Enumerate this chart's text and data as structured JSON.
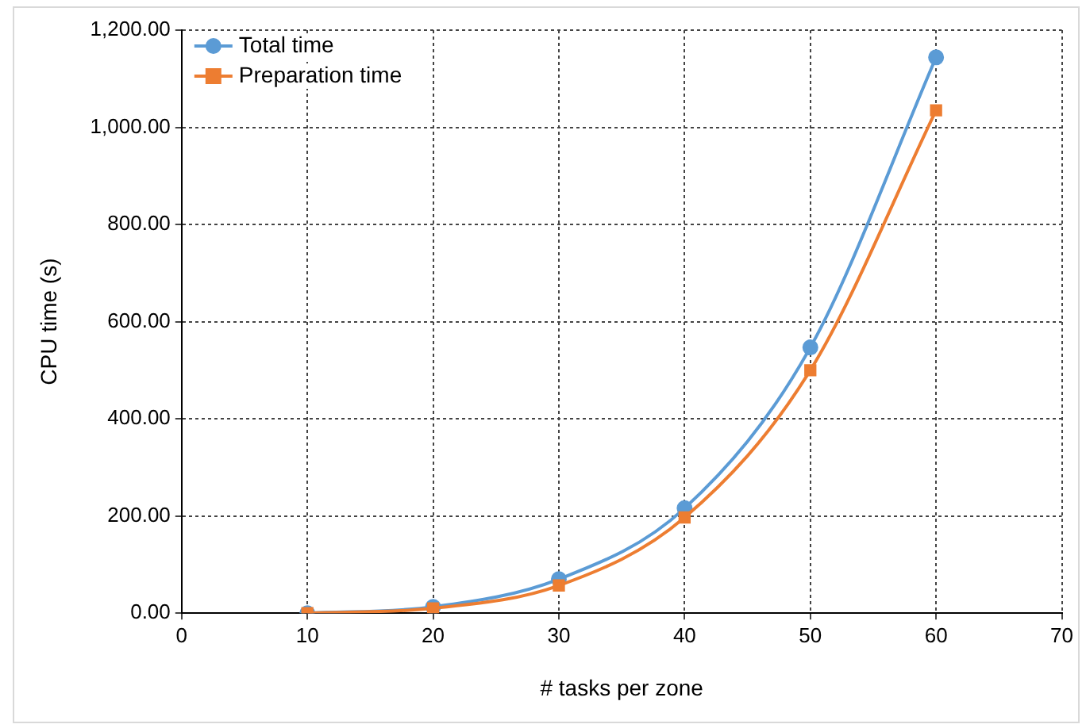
{
  "chart_data": {
    "type": "line",
    "xlabel": "# tasks per zone",
    "ylabel": "CPU time (s)",
    "x": [
      10,
      20,
      30,
      40,
      50,
      60
    ],
    "series": [
      {
        "name": "Total time",
        "color": "#5b9bd5",
        "marker": "circle",
        "values": [
          0,
          13,
          70,
          216,
          547,
          1144
        ]
      },
      {
        "name": "Preparation time",
        "color": "#ed7d31",
        "marker": "square",
        "values": [
          0,
          10,
          57,
          197,
          500,
          1035
        ]
      }
    ],
    "xlim": [
      0,
      70
    ],
    "xticks": [
      0,
      10,
      20,
      30,
      40,
      50,
      60,
      70
    ],
    "ylim": [
      0,
      1200
    ],
    "yticks": [
      {
        "value": 0,
        "label": "0.00"
      },
      {
        "value": 200,
        "label": "200.00"
      },
      {
        "value": 400,
        "label": "400.00"
      },
      {
        "value": 600,
        "label": "600.00"
      },
      {
        "value": 800,
        "label": "800.00"
      },
      {
        "value": 1000,
        "label": "1,000.00"
      },
      {
        "value": 1200,
        "label": "1,200.00"
      }
    ],
    "grid": true,
    "legend": "top left",
    "line_style": "solid"
  }
}
